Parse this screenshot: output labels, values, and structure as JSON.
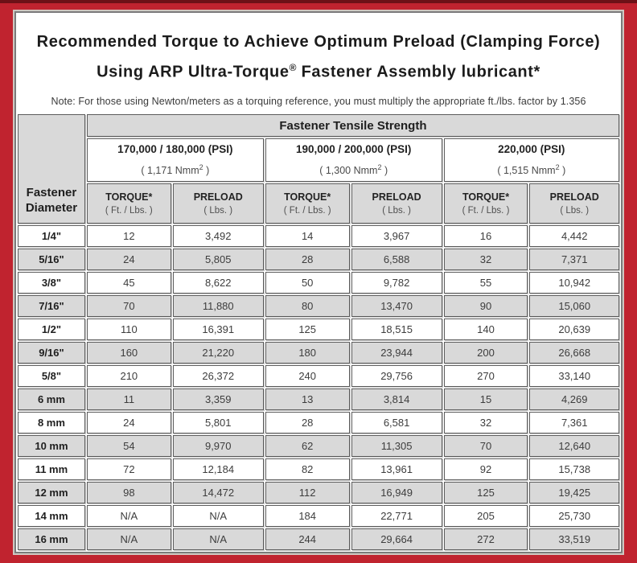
{
  "frame": {
    "background_color": "#c0232f",
    "top_strip_color": "#6d1117",
    "panel_border_color": "#7b7b7b",
    "row_alt_color": "#d9d9d9"
  },
  "title": {
    "line1": "Recommended Torque to Achieve Optimum Preload (Clamping Force)",
    "line2_prefix": "Using ARP Ultra-Torque",
    "line2_sup": "®",
    "line2_suffix": " Fastener Assembly lubricant*"
  },
  "note": "Note: For those using Newton/meters as a torquing reference, you must multiply the appropriate ft./lbs. factor by 1.356",
  "table": {
    "corner_line1": "Fastener",
    "corner_line2": "Diameter",
    "group_header": "Fastener Tensile Strength",
    "strength_columns": [
      {
        "psi": "170,000 / 180,000 (PSI)",
        "nmm_prefix": "( 1,171 Nmm",
        "nmm_sup": "2",
        "nmm_suffix": " )"
      },
      {
        "psi": "190,000 / 200,000 (PSI)",
        "nmm_prefix": "( 1,300 Nmm",
        "nmm_sup": "2",
        "nmm_suffix": " )"
      },
      {
        "psi": "220,000 (PSI)",
        "nmm_prefix": "( 1,515 Nmm",
        "nmm_sup": "2",
        "nmm_suffix": " )"
      }
    ],
    "sub_headers": {
      "torque_label": "TORQUE*",
      "torque_unit": "( Ft. / Lbs. )",
      "preload_label": "PRELOAD",
      "preload_unit": "( Lbs. )"
    },
    "rows": [
      {
        "diameter": "1/4\"",
        "values": [
          "12",
          "3,492",
          "14",
          "3,967",
          "16",
          "4,442"
        ]
      },
      {
        "diameter": "5/16\"",
        "values": [
          "24",
          "5,805",
          "28",
          "6,588",
          "32",
          "7,371"
        ]
      },
      {
        "diameter": "3/8\"",
        "values": [
          "45",
          "8,622",
          "50",
          "9,782",
          "55",
          "10,942"
        ]
      },
      {
        "diameter": "7/16\"",
        "values": [
          "70",
          "11,880",
          "80",
          "13,470",
          "90",
          "15,060"
        ]
      },
      {
        "diameter": "1/2\"",
        "values": [
          "110",
          "16,391",
          "125",
          "18,515",
          "140",
          "20,639"
        ]
      },
      {
        "diameter": "9/16\"",
        "values": [
          "160",
          "21,220",
          "180",
          "23,944",
          "200",
          "26,668"
        ]
      },
      {
        "diameter": "5/8\"",
        "values": [
          "210",
          "26,372",
          "240",
          "29,756",
          "270",
          "33,140"
        ]
      },
      {
        "diameter": "6 mm",
        "values": [
          "11",
          "3,359",
          "13",
          "3,814",
          "15",
          "4,269"
        ]
      },
      {
        "diameter": "8 mm",
        "values": [
          "24",
          "5,801",
          "28",
          "6,581",
          "32",
          "7,361"
        ]
      },
      {
        "diameter": "10 mm",
        "values": [
          "54",
          "9,970",
          "62",
          "11,305",
          "70",
          "12,640"
        ]
      },
      {
        "diameter": "11 mm",
        "values": [
          "72",
          "12,184",
          "82",
          "13,961",
          "92",
          "15,738"
        ]
      },
      {
        "diameter": "12 mm",
        "values": [
          "98",
          "14,472",
          "112",
          "16,949",
          "125",
          "19,425"
        ]
      },
      {
        "diameter": "14 mm",
        "values": [
          "N/A",
          "N/A",
          "184",
          "22,771",
          "205",
          "25,730"
        ]
      },
      {
        "diameter": "16 mm",
        "values": [
          "N/A",
          "N/A",
          "244",
          "29,664",
          "272",
          "33,519"
        ]
      }
    ]
  }
}
